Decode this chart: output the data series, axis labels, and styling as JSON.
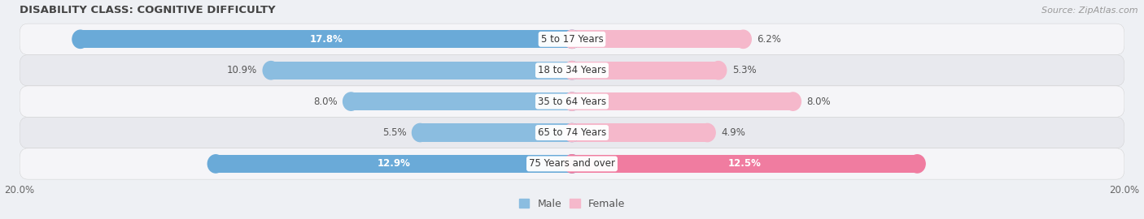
{
  "title": "DISABILITY CLASS: COGNITIVE DIFFICULTY",
  "source": "Source: ZipAtlas.com",
  "categories": [
    "5 to 17 Years",
    "18 to 34 Years",
    "35 to 64 Years",
    "65 to 74 Years",
    "75 Years and over"
  ],
  "male_values": [
    17.8,
    10.9,
    8.0,
    5.5,
    12.9
  ],
  "female_values": [
    6.2,
    5.3,
    8.0,
    4.9,
    12.5
  ],
  "male_color_normal": "#8bbde0",
  "male_color_highlight": "#6aaad8",
  "female_color_normal": "#f5b8cb",
  "female_color_highlight": "#f07ca0",
  "xlim": [
    -20.0,
    20.0
  ],
  "bar_height": 0.58,
  "background_color": "#eef0f4",
  "row_colors": [
    "#f5f5f8",
    "#e8e9ee"
  ],
  "title_fontsize": 9.5,
  "label_fontsize": 8.5,
  "value_fontsize": 8.5,
  "legend_fontsize": 9,
  "source_fontsize": 8,
  "white_text_threshold_male": 11.0,
  "white_text_threshold_female": 10.0
}
